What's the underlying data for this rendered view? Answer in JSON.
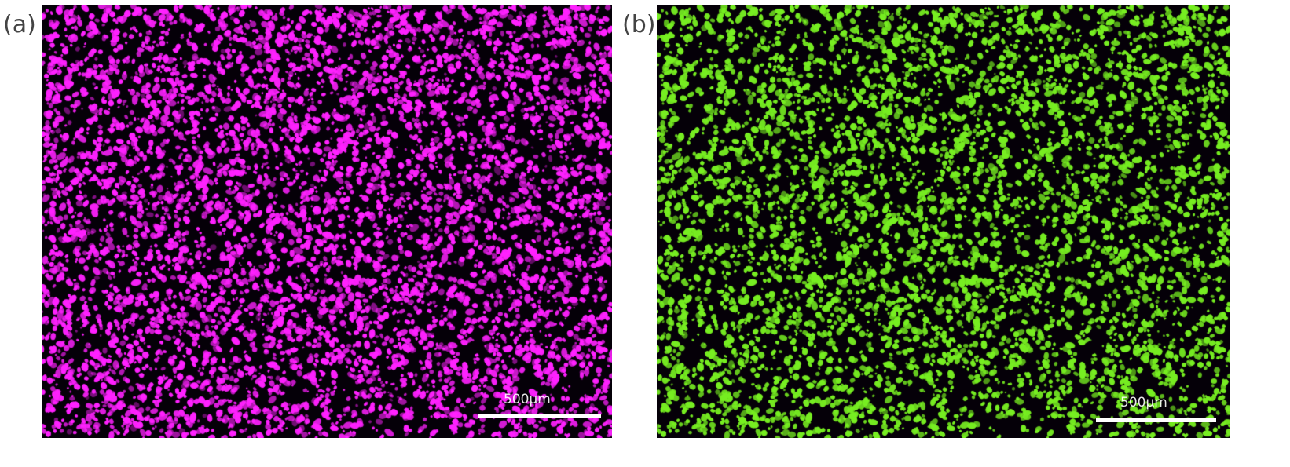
{
  "panels": [
    {
      "label": "(a)",
      "color": "#ff22ff",
      "scale_label": "500µm"
    },
    {
      "label": "(b)",
      "color": "#77ee22",
      "scale_label": "500µm"
    }
  ]
}
